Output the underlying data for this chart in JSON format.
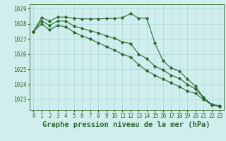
{
  "title": "Graphe pression niveau de la mer (hPa)",
  "x": [
    0,
    1,
    2,
    3,
    4,
    5,
    6,
    7,
    8,
    9,
    10,
    11,
    12,
    13,
    14,
    15,
    16,
    17,
    18,
    19,
    20,
    21,
    22,
    23
  ],
  "series1": [
    1027.5,
    1028.4,
    1028.2,
    1028.45,
    1028.45,
    1028.38,
    1028.33,
    1028.33,
    1028.33,
    1028.35,
    1028.35,
    1028.42,
    1028.68,
    1028.38,
    1028.38,
    1026.72,
    1025.55,
    1025.08,
    1024.88,
    1024.35,
    1023.88,
    1023.12,
    1022.68,
    1022.58
  ],
  "series2": [
    1027.5,
    1028.2,
    1027.9,
    1028.2,
    1028.18,
    1027.85,
    1027.7,
    1027.55,
    1027.4,
    1027.2,
    1027.05,
    1026.8,
    1026.7,
    1026.0,
    1025.7,
    1025.2,
    1024.95,
    1024.6,
    1024.4,
    1024.0,
    1023.7,
    1023.1,
    1022.65,
    1022.55
  ],
  "series3": [
    1027.5,
    1028.0,
    1027.6,
    1027.9,
    1027.8,
    1027.45,
    1027.2,
    1027.0,
    1026.75,
    1026.5,
    1026.25,
    1026.0,
    1025.8,
    1025.3,
    1024.9,
    1024.6,
    1024.35,
    1024.1,
    1023.85,
    1023.55,
    1023.4,
    1023.0,
    1022.65,
    1022.52
  ],
  "line_color": "#2d6a2d",
  "bg_color": "#d0eeee",
  "grid_color": "#a8d8d8",
  "ylim": [
    1022.3,
    1029.3
  ],
  "yticks": [
    1023,
    1024,
    1025,
    1026,
    1027,
    1028,
    1029
  ],
  "xticks": [
    0,
    1,
    2,
    3,
    4,
    5,
    6,
    7,
    8,
    9,
    10,
    11,
    12,
    13,
    14,
    15,
    16,
    17,
    18,
    19,
    20,
    21,
    22,
    23
  ],
  "title_fontsize": 7.5,
  "tick_fontsize": 5.5
}
